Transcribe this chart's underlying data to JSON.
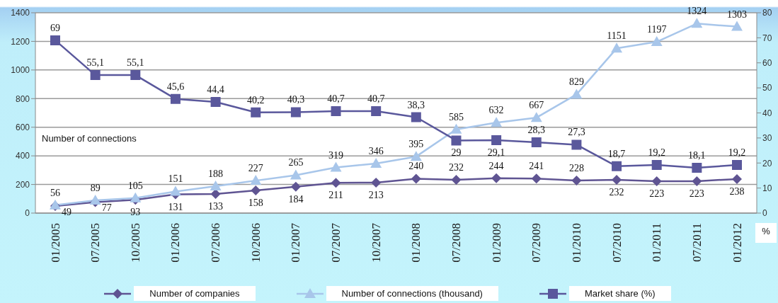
{
  "chart_data": {
    "type": "line",
    "ylabel": "Number of connections",
    "y2label": "%",
    "categories": [
      "01/2005",
      "07/2005",
      "10/2005",
      "01/2006",
      "07/2006",
      "10/2006",
      "01/2007",
      "07/2007",
      "10/2007",
      "01/2008",
      "07/2008",
      "01/2009",
      "07/2009",
      "01/2010",
      "07/2010",
      "01/2011",
      "07/2011",
      "01/2012"
    ],
    "series": [
      {
        "name": "Number of companies",
        "color": "#5f5492",
        "marker": "diamond",
        "values": [
          49,
          77,
          93,
          131,
          133,
          158,
          184,
          211,
          213,
          240,
          232,
          244,
          241,
          228,
          232,
          223,
          223,
          238
        ],
        "value_labels": [
          "49",
          "77",
          "93",
          "131",
          "133",
          "158",
          "184",
          "211",
          "213",
          "240",
          "232",
          "244",
          "241",
          "228",
          "232",
          "223",
          "223",
          "238"
        ]
      },
      {
        "name": "Number of connections (thousand)",
        "color": "#a8c6ea",
        "marker": "triangle",
        "values": [
          56,
          89,
          105,
          151,
          188,
          227,
          265,
          319,
          346,
          395,
          585,
          632,
          667,
          829,
          1151,
          1197,
          1324,
          1303
        ],
        "value_labels": [
          "56",
          "89",
          "105",
          "151",
          "188",
          "227",
          "265",
          "319",
          "346",
          "395",
          "585",
          "632",
          "667",
          "829",
          "1151",
          "1197",
          "1324",
          "1303"
        ]
      },
      {
        "name": "Market share (%)",
        "color": "#5a589c",
        "marker": "square",
        "axis": "y2",
        "values": [
          69,
          55.1,
          55.1,
          45.6,
          44.4,
          40.2,
          40.3,
          40.7,
          40.7,
          38.3,
          29,
          29.1,
          28.3,
          27.3,
          18.7,
          19.2,
          18.1,
          19.2
        ],
        "value_labels": [
          "69",
          "55,1",
          "55,1",
          "45,6",
          "44,4",
          "40,2",
          "40,3",
          "40,7",
          "40,7",
          "38,3",
          "29",
          "29,1",
          "28,3",
          "27,3",
          "18,7",
          "19,2",
          "18,1",
          "19,2"
        ]
      }
    ],
    "ylim": [
      0,
      1400
    ],
    "yticks": [
      0,
      200,
      400,
      600,
      800,
      1000,
      1200,
      1400
    ],
    "y2lim": [
      0,
      80
    ],
    "y2ticks": [
      0,
      10,
      20,
      30,
      40,
      50,
      60,
      70,
      80
    ],
    "grid": "y",
    "legend": "bottom"
  }
}
